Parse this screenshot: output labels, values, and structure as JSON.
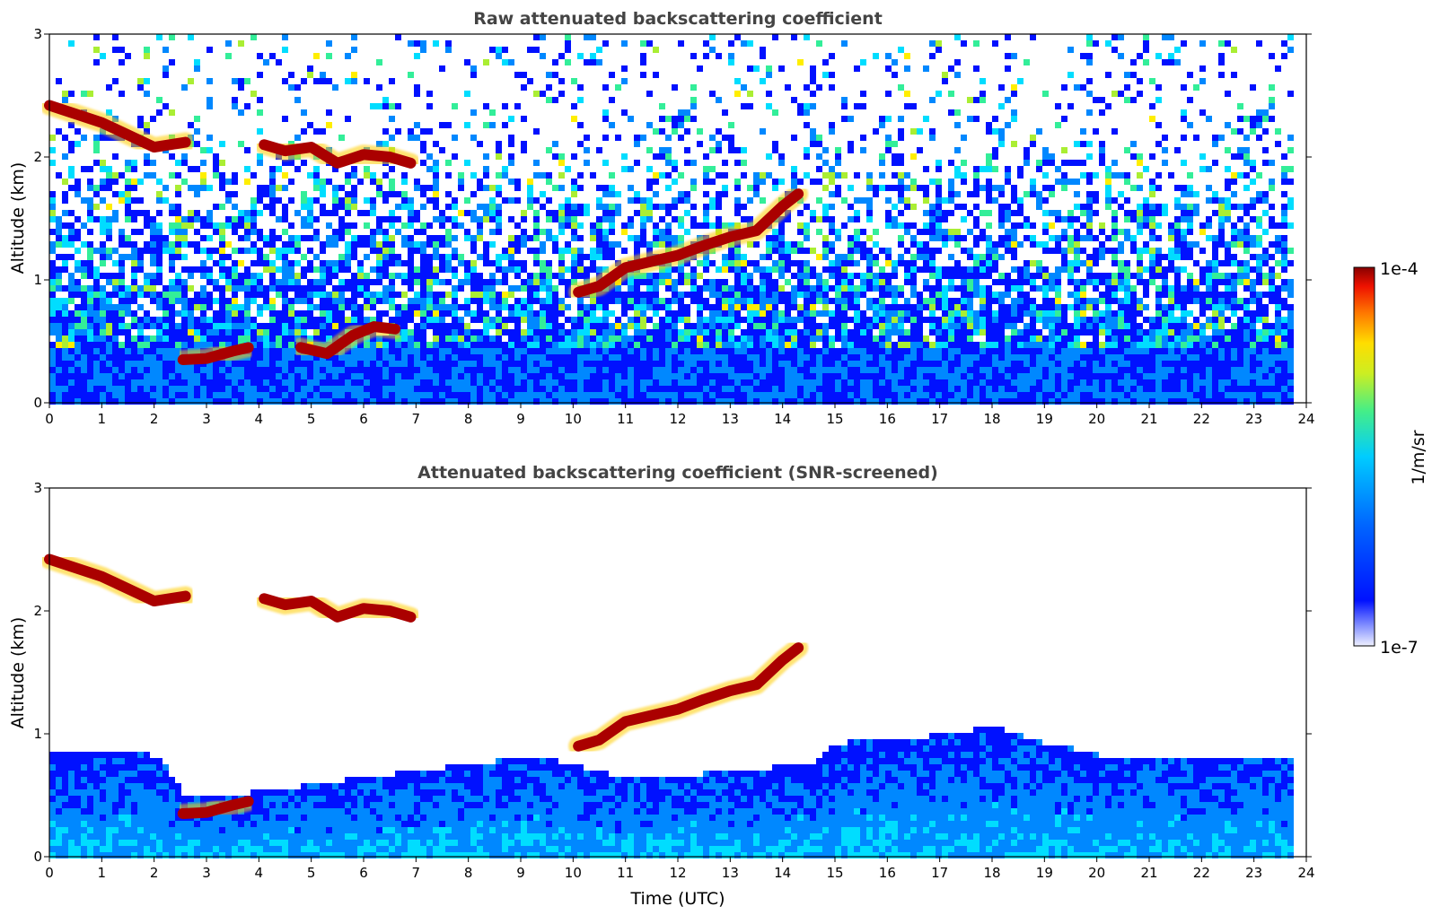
{
  "figure": {
    "xlabel": "Time (UTC)",
    "ylabel": "Altitude (km)"
  },
  "colorbar": {
    "label": "1/m/sr",
    "max_label": "1e-4",
    "min_label": "1e-7",
    "colormap": "jet",
    "colors": [
      "#0000aa",
      "#0011ff",
      "#0088ff",
      "#00ddff",
      "#33ee99",
      "#aaee33",
      "#ffee00",
      "#ff8800",
      "#ee2200",
      "#aa0000"
    ]
  },
  "chart_data": [
    {
      "type": "heatmap",
      "title": "Raw attenuated backscattering coefficient",
      "x_range": [
        0,
        24
      ],
      "y_range": [
        0,
        3
      ],
      "x_ticks": [
        "0",
        "1",
        "2",
        "3",
        "4",
        "5",
        "6",
        "7",
        "8",
        "9",
        "10",
        "11",
        "12",
        "13",
        "14",
        "15",
        "16",
        "17",
        "18",
        "19",
        "20",
        "21",
        "22",
        "23",
        "24"
      ],
      "y_ticks": [
        "0",
        "1",
        "2",
        "3"
      ],
      "color_range": [
        "1e-7",
        "1e-4"
      ],
      "data_end_hour": 23.65,
      "cloud_layers": [
        {
          "x": [
            0,
            0.5,
            1,
            1.5,
            2,
            2.3,
            2.6
          ],
          "y": [
            2.42,
            2.35,
            2.28,
            2.18,
            2.08,
            2.1,
            2.12
          ]
        },
        {
          "x": [
            2.55,
            3,
            3.5,
            3.8
          ],
          "y": [
            0.35,
            0.36,
            0.42,
            0.45
          ]
        },
        {
          "x": [
            4.1,
            4.5,
            5,
            5.5,
            6,
            6.5,
            6.9
          ],
          "y": [
            2.1,
            2.05,
            2.08,
            1.95,
            2.02,
            2.0,
            1.95
          ]
        },
        {
          "x": [
            4.8,
            5.3,
            5.8,
            6.2,
            6.6
          ],
          "y": [
            0.45,
            0.4,
            0.55,
            0.62,
            0.6
          ]
        },
        {
          "x": [
            10.1,
            10.5,
            11,
            11.5,
            12,
            12.5,
            13,
            13.5,
            14,
            14.3
          ],
          "y": [
            0.9,
            0.95,
            1.1,
            1.15,
            1.2,
            1.28,
            1.35,
            1.4,
            1.6,
            1.7
          ]
        }
      ]
    },
    {
      "type": "heatmap",
      "title": "Attenuated backscattering coefficient (SNR-screened)",
      "x_range": [
        0,
        24
      ],
      "y_range": [
        0,
        3
      ],
      "x_ticks": [
        "0",
        "1",
        "2",
        "3",
        "4",
        "5",
        "6",
        "7",
        "8",
        "9",
        "10",
        "11",
        "12",
        "13",
        "14",
        "15",
        "16",
        "17",
        "18",
        "19",
        "20",
        "21",
        "22",
        "23",
        "24"
      ],
      "y_ticks": [
        "0",
        "1",
        "2",
        "3"
      ],
      "color_range": [
        "1e-7",
        "1e-4"
      ],
      "data_end_hour": 23.65,
      "boundary_layer_top": {
        "x": [
          0,
          2,
          2.6,
          3.8,
          9.3,
          11,
          14.5,
          15,
          16,
          17,
          18,
          19,
          20,
          21,
          22,
          23.65
        ],
        "y": [
          0.9,
          0.85,
          0.5,
          0.55,
          0.85,
          0.65,
          0.78,
          0.95,
          0.98,
          1.02,
          1.08,
          0.95,
          0.85,
          0.83,
          0.83,
          0.83
        ]
      },
      "cloud_layers": [
        {
          "x": [
            0,
            0.5,
            1,
            1.5,
            2,
            2.3,
            2.6
          ],
          "y": [
            2.42,
            2.35,
            2.28,
            2.18,
            2.08,
            2.1,
            2.12
          ]
        },
        {
          "x": [
            2.55,
            3,
            3.5,
            3.8
          ],
          "y": [
            0.35,
            0.36,
            0.42,
            0.45
          ]
        },
        {
          "x": [
            4.1,
            4.5,
            5,
            5.5,
            6,
            6.5,
            6.9
          ],
          "y": [
            2.1,
            2.05,
            2.08,
            1.95,
            2.02,
            2.0,
            1.95
          ]
        },
        {
          "x": [
            10.1,
            10.5,
            11,
            11.5,
            12,
            12.5,
            13,
            13.5,
            14,
            14.3
          ],
          "y": [
            0.9,
            0.95,
            1.1,
            1.15,
            1.2,
            1.28,
            1.35,
            1.4,
            1.6,
            1.7
          ]
        }
      ]
    }
  ]
}
